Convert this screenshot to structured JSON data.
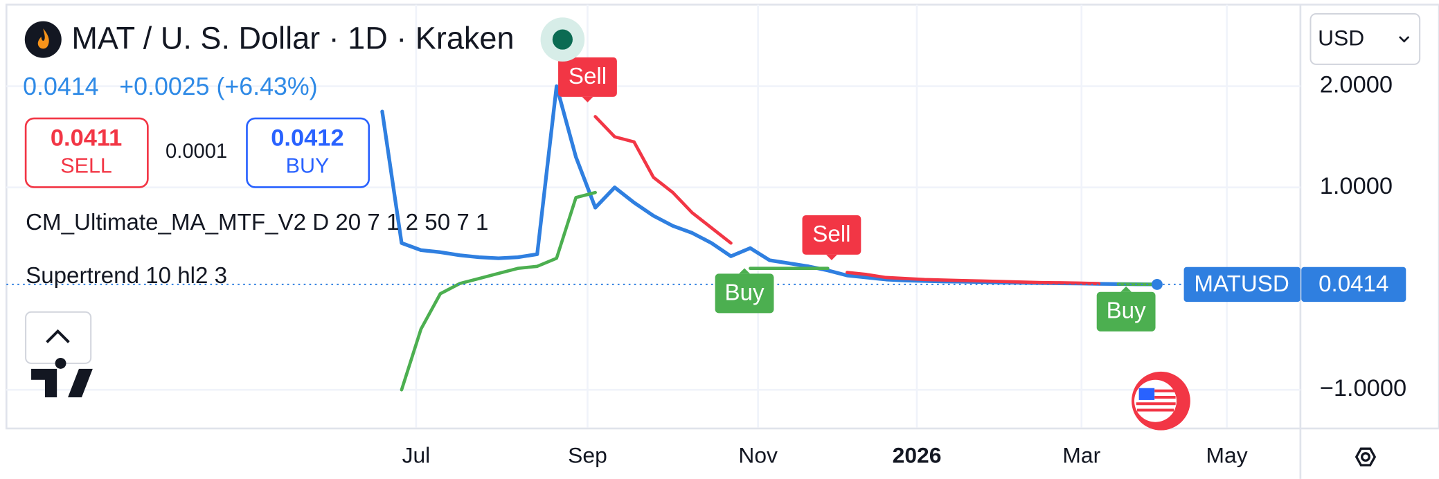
{
  "header": {
    "title": "MAT / U. S. Dollar · 1D · Kraken",
    "change": "+0.0025 (+6.43%)",
    "sell_price": "0.0411",
    "sell_label": "SELL",
    "spread": "0.0001",
    "buy_price": "0.0412",
    "buy_label": "BUY",
    "indicators": [
      "CM_Ultimate_MA_MTF_V2 D 20 7 1 2 50 7 1",
      "Supertrend 10 hl2 3"
    ],
    "currency": "USD"
  },
  "chart_data": {
    "type": "line",
    "xlim": [
      -19.4,
      47.4
    ],
    "xticks": [
      {
        "value": 1.75,
        "label": "Jul"
      },
      {
        "value": 10.6,
        "label": "Sep"
      },
      {
        "value": 19.4,
        "label": "Nov"
      },
      {
        "value": 27.6,
        "label": "2026"
      },
      {
        "value": 36.1,
        "label": "Mar"
      },
      {
        "value": 43.6,
        "label": "May"
      }
    ],
    "ylim": [
      -1.373,
      2.806
    ],
    "yticks": [
      {
        "value": 2,
        "label": "2.0000"
      },
      {
        "value": 1,
        "label": "1.0000"
      },
      {
        "value": -1,
        "label": "−1.0000"
      }
    ],
    "grid": true,
    "series": [
      {
        "name": "MATUSD",
        "color": "#2f7fe0",
        "values": [
          1.75,
          0.45,
          0.38,
          0.36,
          0.33,
          0.31,
          0.3,
          0.31,
          0.34,
          2.0,
          1.3,
          0.8,
          1.0,
          0.85,
          0.72,
          0.62,
          0.55,
          0.45,
          0.32,
          0.4,
          0.28,
          0.25,
          0.22,
          0.18,
          0.13,
          0.11,
          0.09,
          0.08,
          0.075,
          0.07,
          0.068,
          0.065,
          0.06,
          0.058,
          0.055,
          0.052,
          0.05,
          0.047,
          0.045,
          0.043,
          0.0414
        ]
      },
      {
        "color": "#f23645",
        "values": [
          null,
          null,
          null,
          null,
          null,
          null,
          null,
          null,
          null,
          null,
          null,
          1.7,
          1.5,
          1.45,
          1.1,
          0.95,
          0.75,
          0.6,
          0.45,
          null,
          null,
          null,
          null,
          null,
          0.16,
          0.14,
          0.11,
          0.1,
          0.09,
          0.085,
          0.08,
          0.075,
          0.07,
          0.065,
          0.06,
          0.058,
          0.055,
          0.05,
          null,
          null,
          null
        ]
      },
      {
        "color": "#4caf50",
        "values": [
          null,
          -1.0,
          -0.4,
          -0.05,
          0.05,
          0.1,
          0.15,
          0.2,
          0.22,
          0.3,
          0.9,
          0.95,
          null,
          null,
          null,
          null,
          null,
          null,
          null,
          0.2,
          0.2,
          0.2,
          0.2,
          0.2,
          null,
          null,
          null,
          null,
          null,
          null,
          null,
          null,
          null,
          null,
          null,
          null,
          null,
          null,
          0.045,
          0.043,
          0.042
        ]
      }
    ],
    "signals": [
      {
        "label": "Sell",
        "x": 10.6,
        "y": 1.85,
        "color": "#f23645"
      },
      {
        "label": "Buy",
        "x": 18.7,
        "y": 0.22,
        "color": "#4caf50"
      },
      {
        "label": "Sell",
        "x": 23.2,
        "y": 0.29,
        "color": "#f23645"
      },
      {
        "label": "Buy",
        "x": 38.4,
        "y": 0.04,
        "color": "#4caf50"
      }
    ]
  }
}
